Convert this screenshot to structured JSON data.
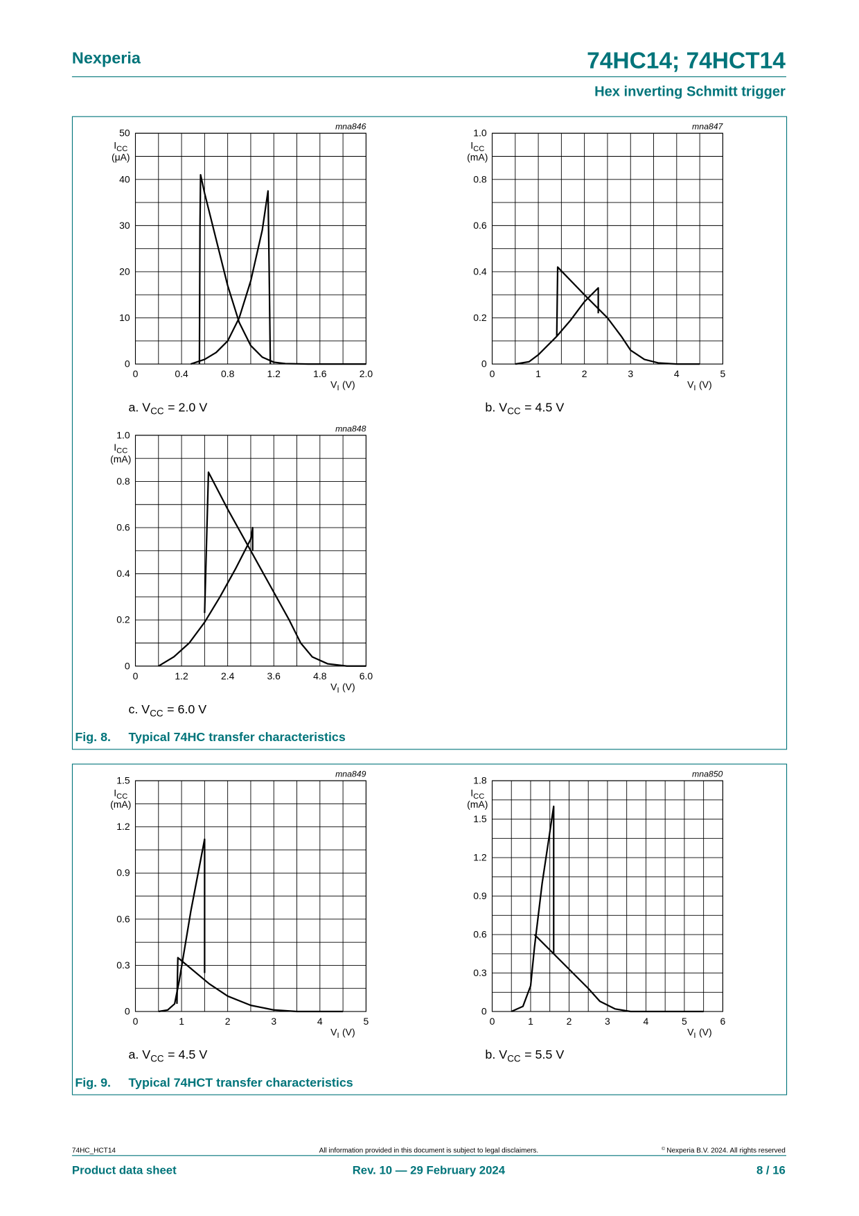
{
  "header": {
    "brand": "Nexperia",
    "title": "74HC14; 74HCT14",
    "subtitle": "Hex inverting Schmitt trigger"
  },
  "figures": [
    {
      "label": "Fig. 8.",
      "caption": "Typical 74HC transfer characteristics"
    },
    {
      "label": "Fig. 9.",
      "caption": "Typical 74HCT transfer characteristics"
    }
  ],
  "chart_data": [
    {
      "type": "line",
      "code": "mna846",
      "caption": {
        "prefix": "a. V",
        "subscript": "CC",
        "suffix": "= 2.0 V"
      },
      "xlabel": {
        "symbol": "V",
        "subscript": "I",
        "unit": "(V)"
      },
      "ylabel": {
        "symbol": "I",
        "subscript": "CC",
        "unit": "(μA)"
      },
      "xlim": [
        0,
        2
      ],
      "xticks": [
        0,
        0.4,
        0.8,
        1.2,
        1.6,
        {
          "value": 2,
          "label": "2.0"
        }
      ],
      "ylim": [
        0,
        50
      ],
      "yticks": [
        0,
        10,
        20,
        30,
        40,
        50
      ],
      "grid": true,
      "series": [
        {
          "color": "#000000",
          "x": [
            0.555,
            0.56,
            0.565,
            0.6,
            0.7,
            0.8,
            0.9,
            1.0,
            1.1,
            1.2,
            1.3,
            1.5,
            2.0
          ],
          "values": [
            0,
            30,
            41,
            37,
            27,
            17,
            9,
            4,
            1.5,
            0.4,
            0.1,
            0,
            0
          ]
        },
        {
          "color": "#000000",
          "x": [
            0.48,
            0.6,
            0.7,
            0.8,
            0.9,
            1.0,
            1.1,
            1.15,
            1.16,
            1.17
          ],
          "values": [
            0,
            1,
            2.5,
            5,
            10,
            18,
            29,
            37.5,
            20,
            0
          ]
        }
      ]
    },
    {
      "type": "line",
      "code": "mna847",
      "caption": {
        "prefix": "b. V",
        "subscript": "CC",
        "suffix": "= 4.5 V"
      },
      "xlabel": {
        "symbol": "V",
        "subscript": "I",
        "unit": "(V)"
      },
      "ylabel": {
        "symbol": "I",
        "subscript": "CC",
        "unit": "(mA)"
      },
      "xlim": [
        0,
        5
      ],
      "xticks": [
        0,
        1,
        2,
        3,
        4,
        5
      ],
      "ylim": [
        0,
        1
      ],
      "yticks": [
        0,
        0.2,
        0.4,
        0.6,
        0.8,
        {
          "value": 1,
          "label": "1.0"
        }
      ],
      "grid": true,
      "series": [
        {
          "color": "#000000",
          "x": [
            0.5,
            0.8,
            1.0,
            1.2,
            1.4,
            1.7,
            2.0,
            2.3,
            2.3
          ],
          "values": [
            0,
            0.01,
            0.04,
            0.08,
            0.12,
            0.19,
            0.27,
            0.33,
            0.22
          ]
        },
        {
          "color": "#000000",
          "x": [
            1.4,
            1.42,
            2.0,
            2.5,
            2.8,
            3.0,
            3.3,
            3.6,
            4.0,
            4.5
          ],
          "values": [
            0.12,
            0.42,
            0.3,
            0.2,
            0.12,
            0.06,
            0.02,
            0.005,
            0,
            0
          ]
        }
      ]
    },
    {
      "type": "line",
      "code": "mna848",
      "caption": {
        "prefix": "c. V",
        "subscript": "CC",
        "suffix": "= 6.0 V"
      },
      "xlabel": {
        "symbol": "V",
        "subscript": "I",
        "unit": "(V)"
      },
      "ylabel": {
        "symbol": "I",
        "subscript": "CC",
        "unit": "(mA)"
      },
      "xlim": [
        0,
        6
      ],
      "xticks": [
        0,
        1.2,
        2.4,
        3.6,
        4.8,
        {
          "value": 6,
          "label": "6.0"
        }
      ],
      "ylim": [
        0,
        1
      ],
      "yticks": [
        0,
        0.2,
        0.4,
        0.6,
        0.8,
        {
          "value": 1,
          "label": "1.0"
        }
      ],
      "grid": true,
      "series": [
        {
          "color": "#000000",
          "x": [
            0.6,
            1.0,
            1.4,
            1.8,
            2.2,
            2.6,
            3.0,
            3.05,
            3.05
          ],
          "values": [
            0,
            0.04,
            0.1,
            0.19,
            0.3,
            0.42,
            0.55,
            0.6,
            0.5
          ]
        },
        {
          "color": "#000000",
          "x": [
            1.8,
            1.9,
            2.4,
            3.0,
            3.5,
            4.0,
            4.3,
            4.6,
            5.0,
            5.5,
            6.0
          ],
          "values": [
            0.23,
            0.84,
            0.68,
            0.5,
            0.35,
            0.2,
            0.1,
            0.04,
            0.01,
            0,
            0
          ]
        }
      ]
    },
    {
      "type": "line",
      "code": "mna849",
      "caption": {
        "prefix": "a. V",
        "subscript": "CC",
        "suffix": "= 4.5 V"
      },
      "xlabel": {
        "symbol": "V",
        "subscript": "I",
        "unit": "(V)"
      },
      "ylabel": {
        "symbol": "I",
        "subscript": "CC",
        "unit": "(mA)"
      },
      "xlim": [
        0,
        5
      ],
      "xticks": [
        0,
        1,
        2,
        3,
        4,
        5
      ],
      "ylim": [
        0,
        1.5
      ],
      "yticks": [
        0,
        0.3,
        0.6,
        0.9,
        1.2,
        1.5
      ],
      "grid": true,
      "series": [
        {
          "color": "#000000",
          "x": [
            0.5,
            0.7,
            0.85,
            0.95,
            1.2,
            1.5,
            1.5
          ],
          "values": [
            0,
            0.01,
            0.05,
            0.2,
            0.65,
            1.12,
            0.25
          ]
        },
        {
          "color": "#000000",
          "x": [
            0.9,
            0.92,
            1.2,
            1.6,
            2.0,
            2.5,
            3.0,
            3.5,
            4.5
          ],
          "values": [
            0.05,
            0.35,
            0.28,
            0.18,
            0.1,
            0.04,
            0.01,
            0,
            0
          ]
        }
      ]
    },
    {
      "type": "line",
      "code": "mna850",
      "caption": {
        "prefix": "b. V",
        "subscript": "CC",
        "suffix": "= 5.5 V"
      },
      "xlabel": {
        "symbol": "V",
        "subscript": "I",
        "unit": "(V)"
      },
      "ylabel": {
        "symbol": "I",
        "subscript": "CC",
        "unit": "(mA)"
      },
      "xlim": [
        0,
        6
      ],
      "xticks": [
        0,
        1,
        2,
        3,
        4,
        5,
        6
      ],
      "ylim": [
        0,
        1.8
      ],
      "yticks": [
        0,
        0.3,
        0.6,
        0.9,
        1.2,
        1.5,
        1.8
      ],
      "grid": true,
      "series": [
        {
          "color": "#000000",
          "x": [
            0.5,
            0.8,
            1.0,
            1.1,
            1.3,
            1.6,
            1.6
          ],
          "values": [
            0,
            0.04,
            0.2,
            0.5,
            1.0,
            1.6,
            0.45
          ]
        },
        {
          "color": "#000000",
          "x": [
            1.1,
            1.5,
            2.0,
            2.5,
            2.8,
            3.2,
            3.6,
            5.5
          ],
          "values": [
            0.6,
            0.48,
            0.33,
            0.18,
            0.08,
            0.02,
            0,
            0
          ]
        }
      ]
    }
  ],
  "footer": {
    "doc_id": "74HC_HCT14",
    "disclaimer": "All information provided in this document is subject to legal disclaimers.",
    "copyright_symbol": "©",
    "copyright": "Nexperia B.V. 2024. All rights reserved",
    "doc_type": "Product data sheet",
    "revision": "Rev. 10 — 29 February 2024",
    "page": "8 / 16"
  }
}
